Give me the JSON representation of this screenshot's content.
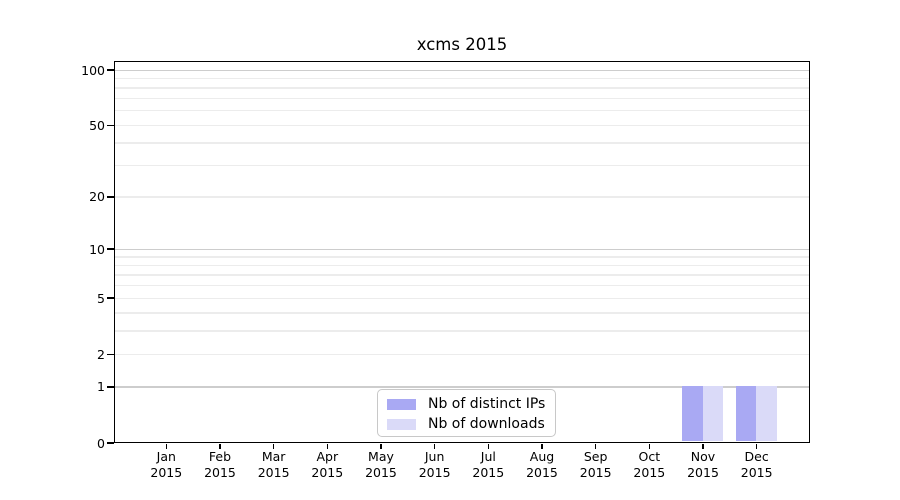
{
  "chart_data": {
    "type": "bar",
    "title": "xcms 2015",
    "categories": [
      "Jan",
      "Feb",
      "Mar",
      "Apr",
      "May",
      "Jun",
      "Jul",
      "Aug",
      "Sep",
      "Oct",
      "Nov",
      "Dec"
    ],
    "year_label": "2015",
    "series": [
      {
        "name": "Nb of distinct IPs",
        "color": "#a9a9f3",
        "values": [
          0,
          0,
          0,
          0,
          0,
          0,
          0,
          0,
          0,
          0,
          1,
          1
        ]
      },
      {
        "name": "Nb of downloads",
        "color": "#dadaf8",
        "values": [
          0,
          0,
          0,
          0,
          0,
          0,
          0,
          0,
          0,
          0,
          1,
          1
        ]
      }
    ],
    "y_axis": {
      "scale": "log1p",
      "range": [
        0,
        100
      ],
      "tick_values": [
        0,
        1,
        2,
        5,
        10,
        20,
        50,
        100
      ],
      "major_gridlines": [
        1,
        10,
        100
      ],
      "minor_gridlines": [
        2,
        3,
        4,
        5,
        6,
        7,
        8,
        9,
        20,
        30,
        40,
        50,
        60,
        70,
        80,
        90
      ]
    },
    "grid": "horizontal",
    "legend_position": "inside-bottom-center",
    "colors": {
      "major_grid": "#cdcdcd",
      "minor_grid": "#ececec",
      "axis": "#000000",
      "legend_border": "#c8c8c8",
      "background": "#ffffff"
    }
  }
}
